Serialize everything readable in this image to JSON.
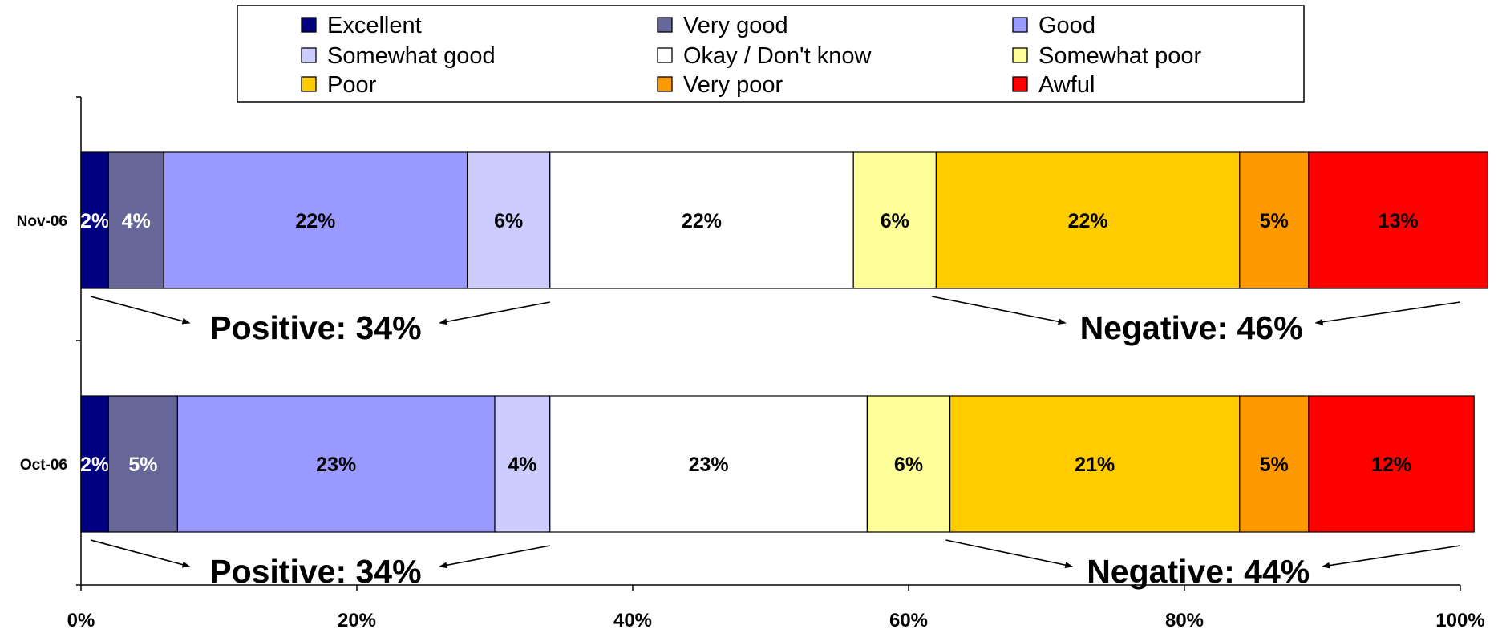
{
  "chart_data": {
    "type": "bar",
    "orientation": "horizontal",
    "stacked": "percent",
    "categories": [
      "Nov-06",
      "Oct-06"
    ],
    "xlim": [
      0,
      100
    ],
    "xticks": [
      "0%",
      "20%",
      "40%",
      "60%",
      "80%",
      "100%"
    ],
    "grid": false,
    "legend_position": "top",
    "series": [
      {
        "name": "Excellent",
        "color": "#000080",
        "values": [
          2,
          2
        ],
        "labels": [
          "2%",
          "2%"
        ],
        "label_color": "#ffffff"
      },
      {
        "name": "Very good",
        "color": "#666699",
        "values": [
          4,
          5
        ],
        "labels": [
          "4%",
          "5%"
        ],
        "label_color": "#ffffff"
      },
      {
        "name": "Good",
        "color": "#9999ff",
        "values": [
          22,
          23
        ],
        "labels": [
          "22%",
          "23%"
        ],
        "label_color": "#000000"
      },
      {
        "name": "Somewhat good",
        "color": "#ccccff",
        "values": [
          6,
          4
        ],
        "labels": [
          "6%",
          "4%"
        ],
        "label_color": "#000000"
      },
      {
        "name": "Okay / Don't know",
        "color": "#ffffff",
        "values": [
          22,
          23
        ],
        "labels": [
          "22%",
          "23%"
        ],
        "label_color": "#000000"
      },
      {
        "name": "Somewhat poor",
        "color": "#ffff99",
        "values": [
          6,
          6
        ],
        "labels": [
          "6%",
          "6%"
        ],
        "label_color": "#000000"
      },
      {
        "name": "Poor",
        "color": "#ffcc00",
        "values": [
          22,
          21
        ],
        "labels": [
          "22%",
          "21%"
        ],
        "label_color": "#000000"
      },
      {
        "name": "Very poor",
        "color": "#ff9900",
        "values": [
          5,
          5
        ],
        "labels": [
          "5%",
          "5%"
        ],
        "label_color": "#000000"
      },
      {
        "name": "Awful",
        "color": "#ff0000",
        "values": [
          13,
          12
        ],
        "labels": [
          "13%",
          "12%"
        ],
        "label_color": "#000000"
      }
    ],
    "annotations": [
      {
        "category": "Nov-06",
        "text": "Positive: 34%",
        "span": [
          0,
          34
        ]
      },
      {
        "category": "Nov-06",
        "text": "Negative: 46%",
        "span": [
          61,
          100
        ]
      },
      {
        "category": "Oct-06",
        "text": "Positive: 34%",
        "span": [
          0,
          34
        ]
      },
      {
        "category": "Oct-06",
        "text": "Negative: 44%",
        "span": [
          62,
          100
        ]
      }
    ]
  }
}
